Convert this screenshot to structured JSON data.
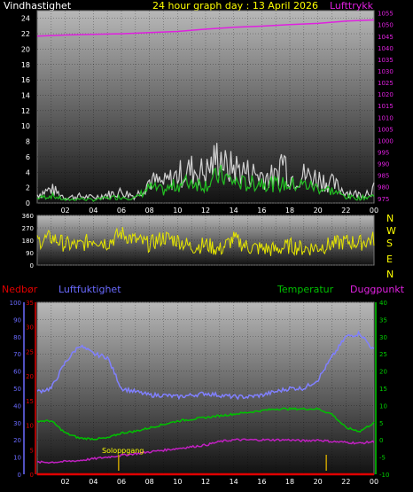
{
  "header": {
    "wind_label": "Vindhastighet",
    "title": "24 hour graph day : 13 April 2026",
    "pressure_label": "Lufttrykk"
  },
  "mid_header": {
    "rain_label": "Nedbør",
    "humidity_label": "Luftfuktighet",
    "temperature_label": "Temperatur",
    "dewpoint_label": "Duggpunkt"
  },
  "compass": [
    "N",
    "W",
    "S",
    "E",
    "N"
  ],
  "sunrise_label": "Soloppgang",
  "colors": {
    "wind_gust": "#d0d0d0",
    "wind_avg": "#22c022",
    "pressure": "#e020e0",
    "direction": "#e6e600",
    "humidity": "#8080ff",
    "temperature": "#00c000",
    "dewpoint": "#c020c0",
    "rain": "#e00000",
    "axis_wind": "#ffffff",
    "axis_pressure": "#e020e0",
    "axis_humidity": "#6a6aff",
    "axis_rain": "#e00000",
    "axis_temp": "#00d000",
    "marker": "#c8a000",
    "accent_header": "#ffff00"
  },
  "chart_data": [
    {
      "type": "line",
      "name": "wind-pressure",
      "x_ticks": [
        "02",
        "04",
        "06",
        "08",
        "10",
        "12",
        "14",
        "16",
        "18",
        "20",
        "22",
        "00"
      ],
      "y_left_ticks": [
        0,
        2,
        4,
        6,
        8,
        10,
        12,
        14,
        16,
        18,
        20,
        22,
        24
      ],
      "y_left_range": [
        0,
        25
      ],
      "y_right_ticks": [
        975,
        980,
        985,
        990,
        995,
        1000,
        1005,
        1010,
        1015,
        1020,
        1025,
        1030,
        1035,
        1040,
        1045,
        1050,
        1055
      ],
      "y_right_range": [
        973,
        1056
      ],
      "grid": true,
      "series": [
        {
          "axis": "left",
          "role": "gust",
          "x": [
            0,
            1,
            2,
            3,
            4,
            5,
            6,
            7,
            8,
            9,
            10,
            11,
            12,
            12.5,
            13,
            13.5,
            14,
            15,
            16,
            17,
            17.5,
            18,
            19,
            20,
            21,
            22,
            23,
            24
          ],
          "values": [
            1.5,
            2.5,
            1.0,
            1.2,
            1.0,
            1.5,
            2.0,
            1.2,
            4.0,
            3.5,
            5.0,
            6.0,
            5.5,
            7.0,
            9.0,
            6.0,
            6.5,
            5.5,
            5.0,
            4.5,
            8.5,
            4.5,
            5.0,
            4.5,
            3.5,
            2.0,
            1.5,
            2.5
          ]
        },
        {
          "axis": "left",
          "role": "average",
          "x": [
            0,
            1,
            2,
            3,
            4,
            5,
            6,
            7,
            8,
            9,
            10,
            11,
            12,
            13,
            14,
            15,
            16,
            17,
            18,
            19,
            20,
            21,
            22,
            23,
            24
          ],
          "values": [
            0.8,
            1.2,
            0.5,
            0.7,
            0.5,
            0.8,
            1.0,
            0.8,
            2.5,
            2.0,
            3.0,
            3.5,
            3.0,
            4.5,
            3.5,
            3.0,
            3.5,
            3.0,
            3.0,
            3.0,
            2.5,
            2.0,
            1.0,
            0.8,
            1.2
          ]
        },
        {
          "axis": "right",
          "role": "pressure",
          "x": [
            0,
            2,
            4,
            6,
            8,
            10,
            12,
            14,
            16,
            18,
            20,
            22,
            24
          ],
          "values": [
            1045,
            1045.5,
            1045.8,
            1046,
            1046.5,
            1047,
            1048,
            1048.8,
            1049.3,
            1050,
            1050.5,
            1051.5,
            1052
          ]
        }
      ]
    },
    {
      "type": "line",
      "name": "wind-direction",
      "x_ticks": [
        "02",
        "04",
        "06",
        "08",
        "10",
        "12",
        "14",
        "16",
        "18",
        "20",
        "22",
        "00"
      ],
      "y_ticks": [
        0,
        90,
        180,
        270,
        360
      ],
      "y_range": [
        0,
        360
      ],
      "grid": true,
      "series": [
        {
          "role": "direction",
          "x": [
            0,
            1,
            2,
            3,
            4,
            5,
            6,
            7,
            8,
            9,
            10,
            11,
            12,
            13,
            14,
            15,
            16,
            17,
            18,
            19,
            20,
            21,
            22,
            23,
            24
          ],
          "values": [
            170,
            200,
            150,
            140,
            190,
            160,
            230,
            180,
            150,
            200,
            180,
            130,
            150,
            110,
            190,
            130,
            120,
            110,
            140,
            120,
            130,
            150,
            170,
            160,
            190
          ]
        }
      ]
    },
    {
      "type": "line",
      "name": "humidity-temperature",
      "x_ticks": [
        "02",
        "04",
        "06",
        "08",
        "10",
        "12",
        "14",
        "16",
        "18",
        "20",
        "22",
        "00"
      ],
      "y_humidity_ticks": [
        0,
        10,
        20,
        30,
        40,
        50,
        60,
        70,
        80,
        90,
        100
      ],
      "y_humidity_range": [
        0,
        100
      ],
      "y_rain_ticks": [
        0,
        5,
        10,
        15,
        20,
        25,
        30,
        35
      ],
      "y_rain_range": [
        0,
        35
      ],
      "y_temp_ticks": [
        -10,
        -5,
        0,
        5,
        10,
        15,
        20,
        25,
        30,
        35,
        40
      ],
      "y_temp_range": [
        -10,
        40
      ],
      "grid": true,
      "series": [
        {
          "axis": "humidity",
          "role": "humidity",
          "x": [
            0,
            1,
            2,
            3,
            4,
            5,
            6,
            7,
            8,
            9,
            10,
            11,
            12,
            13,
            14,
            15,
            16,
            17,
            18,
            19,
            20,
            21,
            22,
            23,
            24
          ],
          "values": [
            48,
            50,
            65,
            75,
            70,
            68,
            50,
            48,
            46,
            46,
            45,
            46,
            47,
            46,
            45,
            45,
            46,
            48,
            50,
            50,
            55,
            68,
            80,
            82,
            72
          ]
        },
        {
          "axis": "temp",
          "role": "temperature",
          "x": [
            0,
            1,
            2,
            3,
            4,
            5,
            6,
            7,
            8,
            9,
            10,
            11,
            12,
            13,
            14,
            15,
            16,
            17,
            18,
            19,
            20,
            21,
            22,
            23,
            24
          ],
          "values": [
            5.5,
            5.5,
            2.0,
            0.5,
            0.3,
            0.5,
            2.0,
            2.5,
            3.5,
            4.5,
            5.5,
            6.0,
            6.5,
            7.0,
            7.5,
            8.0,
            8.5,
            9.0,
            9.0,
            9.0,
            9.0,
            7.5,
            3.5,
            2.5,
            5.0
          ]
        },
        {
          "axis": "temp",
          "role": "dewpoint",
          "x": [
            0,
            1,
            2,
            3,
            4,
            5,
            6,
            7,
            8,
            9,
            10,
            11,
            12,
            13,
            14,
            15,
            16,
            17,
            18,
            19,
            20,
            21,
            22,
            23,
            24
          ],
          "values": [
            -6.5,
            -6.5,
            -6.3,
            -6.0,
            -5.5,
            -5.0,
            -4.5,
            -4.0,
            -3.5,
            -3.0,
            -2.5,
            -2.0,
            -1.5,
            -0.5,
            0,
            0,
            0,
            0,
            0,
            -0.3,
            0,
            -0.5,
            -0.7,
            -1.0,
            -0.5
          ]
        },
        {
          "axis": "rain",
          "role": "rain",
          "x": [
            0,
            24
          ],
          "values": [
            0,
            0
          ]
        }
      ],
      "markers": [
        {
          "label": "Soloppgang",
          "x": 5.8
        },
        {
          "label": "",
          "x": 20.6
        }
      ]
    }
  ]
}
